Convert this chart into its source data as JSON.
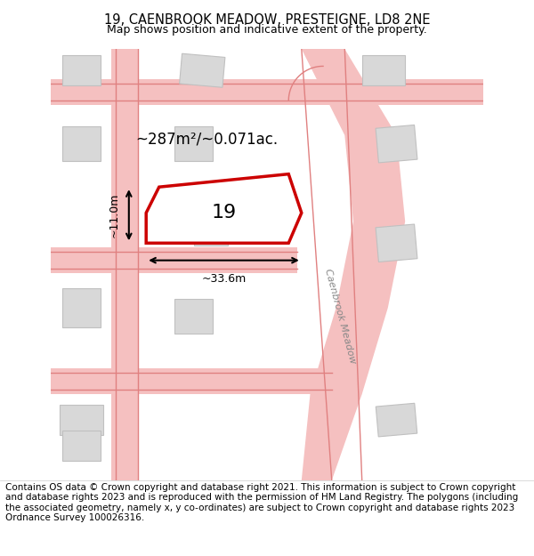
{
  "title": "19, CAENBROOK MEADOW, PRESTEIGNE, LD8 2NE",
  "subtitle": "Map shows position and indicative extent of the property.",
  "footer": "Contains OS data © Crown copyright and database right 2021. This information is subject to Crown copyright and database rights 2023 and is reproduced with the permission of HM Land Registry. The polygons (including the associated geometry, namely x, y co-ordinates) are subject to Crown copyright and database rights 2023 Ordnance Survey 100026316.",
  "bg_color": "#f5f0f0",
  "map_bg": "#ffffff",
  "road_color": "#f5c0c0",
  "road_border_color": "#e08080",
  "building_color": "#d8d8d8",
  "building_edge_color": "#c0c0c0",
  "plot_color": "#cc0000",
  "plot_fill": "#ffffff",
  "dim_color": "#000000",
  "area_text": "~287m²/~0.071ac.",
  "width_text": "~33.6m",
  "height_text": "~11.0m",
  "number_text": "19",
  "road_label": "Caenbrook Meadow",
  "title_fontsize": 10.5,
  "subtitle_fontsize": 9,
  "footer_fontsize": 7.5,
  "area_fontsize": 12,
  "dim_fontsize": 9,
  "number_fontsize": 16
}
